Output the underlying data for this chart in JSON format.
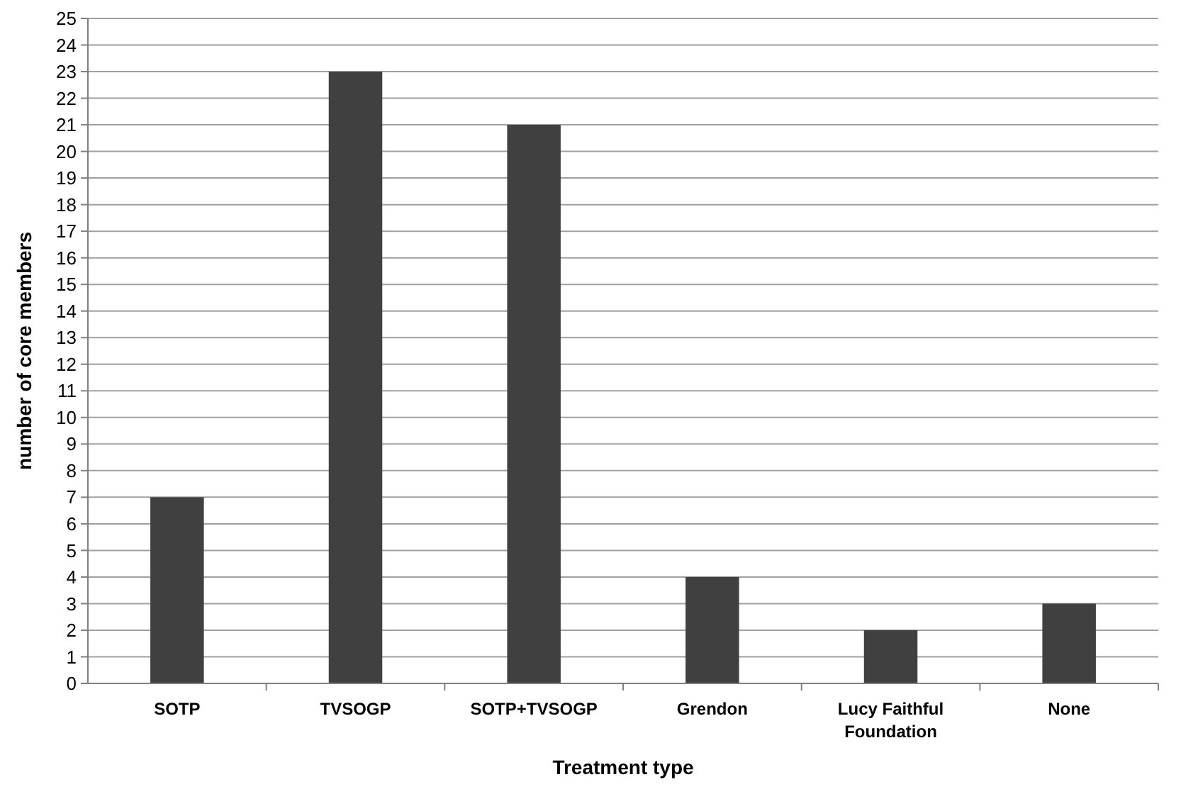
{
  "chart_data": {
    "type": "bar",
    "xlabel": "Treatment type",
    "ylabel": "number of core members",
    "categories": [
      "SOTP",
      "TVSOGP",
      "SOTP+TVSOGP",
      "Grendon",
      "Lucy Faithful Foundation",
      "None"
    ],
    "values": [
      7,
      23,
      21,
      4,
      2,
      3
    ],
    "color": "#404040",
    "ylim": [
      0,
      25
    ],
    "yticks": [
      0,
      1,
      2,
      3,
      4,
      5,
      6,
      7,
      8,
      9,
      10,
      11,
      12,
      13,
      14,
      15,
      16,
      17,
      18,
      19,
      20,
      21,
      22,
      23,
      24,
      25
    ],
    "grid": "y"
  }
}
